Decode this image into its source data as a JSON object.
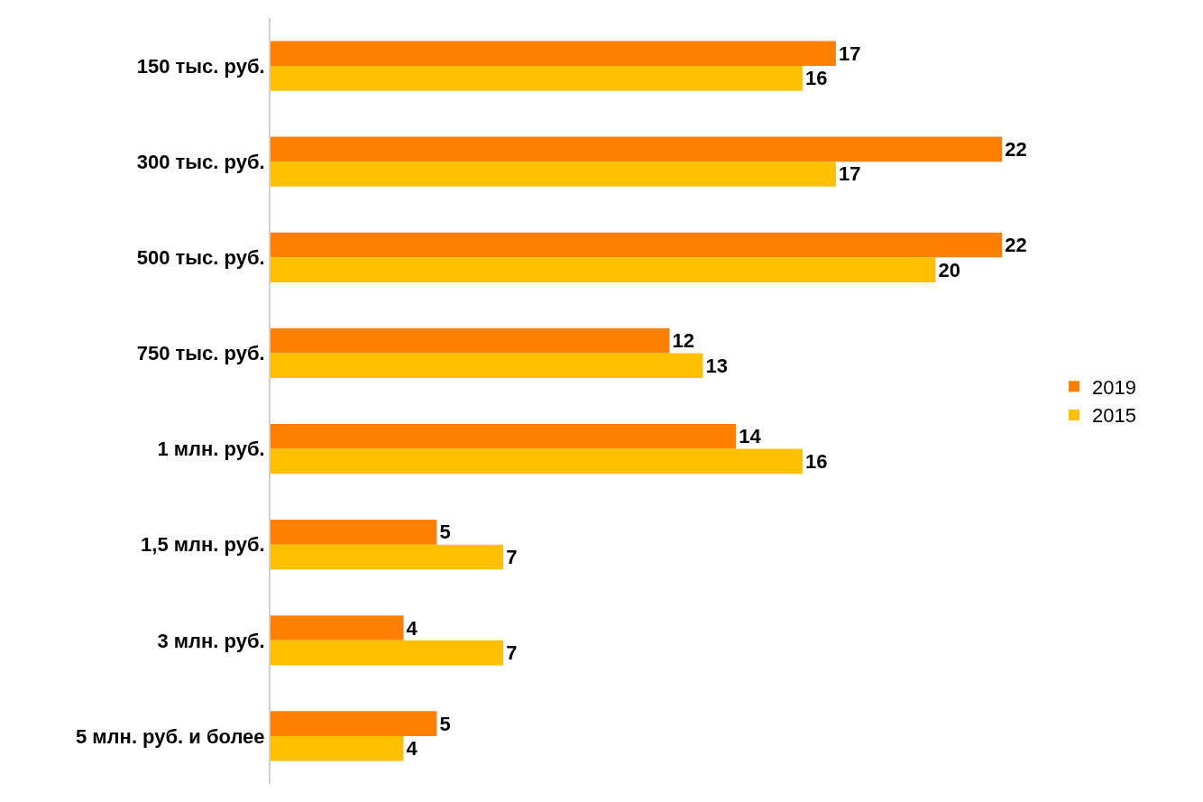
{
  "chart_data": {
    "type": "bar",
    "orientation": "horizontal",
    "categories": [
      "150 тыс. руб.",
      "300 тыс. руб.",
      "500 тыс. руб.",
      "750 тыс. руб.",
      "1 млн. руб.",
      "1,5 млн. руб.",
      "3 млн. руб.",
      "5 млн. руб. и более"
    ],
    "series": [
      {
        "name": "2019",
        "color": "#ff8000",
        "values": [
          17,
          22,
          22,
          12,
          14,
          5,
          4,
          5
        ]
      },
      {
        "name": "2015",
        "color": "#ffc000",
        "values": [
          16,
          17,
          20,
          13,
          16,
          7,
          7,
          4
        ]
      }
    ],
    "data_labels": true,
    "legend": "right",
    "tick_labels": "y"
  }
}
